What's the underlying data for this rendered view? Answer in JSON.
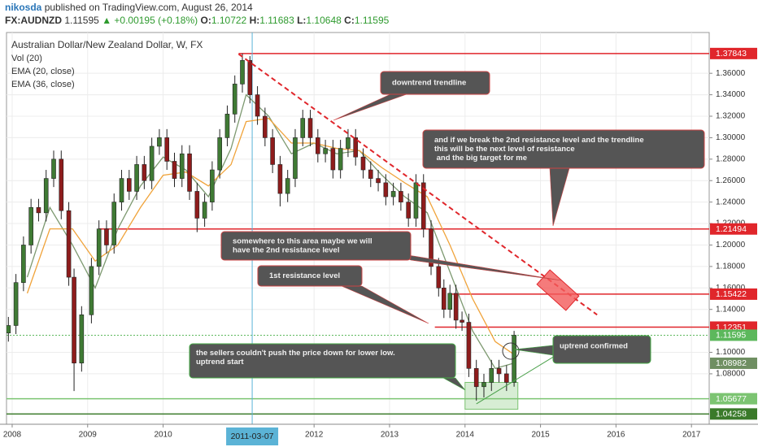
{
  "header": {
    "author": "nikosda",
    "published": "published on TradingView.com, August 26, 2014",
    "symbol": "FX:AUDNZD",
    "price": "1.11595",
    "change": "▲ +0.00195 (+0.18%)",
    "ohlc": [
      {
        "label": "O:",
        "value": "1.10722"
      },
      {
        "label": "H:",
        "value": "1.11683"
      },
      {
        "label": "L:",
        "value": "1.10648"
      },
      {
        "label": "C:",
        "value": "1.11595"
      }
    ]
  },
  "chart_data": {
    "type": "candlestick",
    "title": "Australian Dollar/New Zealand Dollar, W, FX",
    "indicators": [
      "Vol (20)"
    ],
    "up_color": "#3f7a34",
    "down_color": "#8e1c1c",
    "x": [
      2007.95,
      2008.05,
      2008.15,
      2008.25,
      2008.35,
      2008.45,
      2008.55,
      2008.65,
      2008.75,
      2008.82,
      2008.92,
      2009.05,
      2009.15,
      2009.25,
      2009.35,
      2009.45,
      2009.55,
      2009.65,
      2009.75,
      2009.85,
      2009.95,
      2010.05,
      2010.15,
      2010.25,
      2010.35,
      2010.45,
      2010.55,
      2010.65,
      2010.75,
      2010.85,
      2010.95,
      2011.05,
      2011.15,
      2011.25,
      2011.35,
      2011.45,
      2011.55,
      2011.65,
      2011.75,
      2011.85,
      2011.95,
      2012.05,
      2012.15,
      2012.25,
      2012.35,
      2012.45,
      2012.55,
      2012.65,
      2012.75,
      2012.85,
      2012.95,
      2013.05,
      2013.15,
      2013.25,
      2013.35,
      2013.45,
      2013.55,
      2013.65,
      2013.72,
      2013.8,
      2013.88,
      2013.96,
      2014.05,
      2014.15,
      2014.25,
      2014.35,
      2014.45,
      2014.55,
      2014.65
    ],
    "open": [
      1.118,
      1.125,
      1.165,
      1.2,
      1.235,
      1.23,
      1.262,
      1.28,
      1.232,
      1.17,
      1.09,
      1.135,
      1.18,
      1.215,
      1.2,
      1.24,
      1.262,
      1.25,
      1.275,
      1.26,
      1.292,
      1.3,
      1.278,
      1.262,
      1.285,
      1.25,
      1.225,
      1.24,
      1.27,
      1.3,
      1.322,
      1.35,
      1.372,
      1.34,
      1.32,
      1.3,
      1.275,
      1.248,
      1.262,
      1.3,
      1.318,
      1.3,
      1.285,
      1.29,
      1.27,
      1.29,
      1.3,
      1.282,
      1.27,
      1.262,
      1.258,
      1.245,
      1.25,
      1.24,
      1.225,
      1.258,
      1.215,
      1.18,
      1.16,
      1.14,
      1.155,
      1.13,
      1.128,
      1.085,
      1.068,
      1.072,
      1.085,
      1.08,
      1.072
    ],
    "high": [
      1.133,
      1.173,
      1.208,
      1.243,
      1.243,
      1.27,
      1.288,
      1.288,
      1.24,
      1.178,
      1.143,
      1.188,
      1.223,
      1.223,
      1.248,
      1.27,
      1.27,
      1.283,
      1.283,
      1.3,
      1.308,
      1.308,
      1.286,
      1.293,
      1.293,
      1.258,
      1.248,
      1.278,
      1.308,
      1.33,
      1.358,
      1.37843,
      1.376,
      1.348,
      1.328,
      1.308,
      1.283,
      1.27,
      1.308,
      1.326,
      1.326,
      1.308,
      1.298,
      1.298,
      1.298,
      1.308,
      1.308,
      1.29,
      1.278,
      1.27,
      1.266,
      1.258,
      1.258,
      1.248,
      1.266,
      1.266,
      1.223,
      1.188,
      1.168,
      1.163,
      1.163,
      1.138,
      1.136,
      1.093,
      1.08,
      1.093,
      1.093,
      1.088,
      1.12
    ],
    "low": [
      1.11,
      1.117,
      1.157,
      1.192,
      1.222,
      1.222,
      1.254,
      1.224,
      1.162,
      1.064,
      1.082,
      1.127,
      1.172,
      1.192,
      1.192,
      1.232,
      1.242,
      1.242,
      1.252,
      1.252,
      1.284,
      1.27,
      1.254,
      1.254,
      1.242,
      1.212,
      1.217,
      1.232,
      1.262,
      1.292,
      1.314,
      1.342,
      1.332,
      1.312,
      1.292,
      1.267,
      1.236,
      1.24,
      1.254,
      1.292,
      1.292,
      1.277,
      1.277,
      1.262,
      1.262,
      1.282,
      1.274,
      1.262,
      1.254,
      1.25,
      1.237,
      1.237,
      1.232,
      1.217,
      1.217,
      1.207,
      1.172,
      1.152,
      1.132,
      1.132,
      1.122,
      1.12,
      1.077,
      1.055,
      1.058,
      1.064,
      1.072,
      1.064,
      1.068
    ],
    "close": [
      1.125,
      1.165,
      1.2,
      1.235,
      1.23,
      1.262,
      1.28,
      1.232,
      1.17,
      1.09,
      1.135,
      1.18,
      1.215,
      1.2,
      1.24,
      1.262,
      1.25,
      1.275,
      1.26,
      1.292,
      1.3,
      1.278,
      1.262,
      1.285,
      1.25,
      1.225,
      1.24,
      1.27,
      1.3,
      1.322,
      1.35,
      1.372,
      1.34,
      1.32,
      1.3,
      1.275,
      1.248,
      1.262,
      1.3,
      1.318,
      1.3,
      1.285,
      1.29,
      1.27,
      1.29,
      1.3,
      1.282,
      1.27,
      1.262,
      1.258,
      1.245,
      1.25,
      1.24,
      1.225,
      1.258,
      1.215,
      1.18,
      1.16,
      1.14,
      1.155,
      1.13,
      1.128,
      1.085,
      1.068,
      1.072,
      1.085,
      1.08,
      1.072,
      1.11595
    ],
    "series": [
      {
        "name": "EMA (20, close)",
        "color": "#7d9970",
        "x": [
          2008.2,
          2008.5,
          2008.8,
          2009.1,
          2009.4,
          2009.7,
          2010.0,
          2010.3,
          2010.6,
          2010.9,
          2011.1,
          2011.4,
          2011.7,
          2012.0,
          2012.3,
          2012.6,
          2012.9,
          2013.2,
          2013.5,
          2013.8,
          2014.1,
          2014.4,
          2014.65
        ],
        "values": [
          1.17,
          1.235,
          1.2,
          1.16,
          1.215,
          1.255,
          1.282,
          1.27,
          1.245,
          1.29,
          1.34,
          1.32,
          1.285,
          1.295,
          1.285,
          1.288,
          1.265,
          1.245,
          1.23,
          1.175,
          1.12,
          1.085,
          1.09
        ]
      },
      {
        "name": "EMA (36, close)",
        "color": "#f0a33a",
        "x": [
          2008.2,
          2008.5,
          2008.8,
          2009.1,
          2009.4,
          2009.7,
          2010.0,
          2010.3,
          2010.6,
          2010.9,
          2011.1,
          2011.4,
          2011.7,
          2012.0,
          2012.3,
          2012.6,
          2012.9,
          2013.2,
          2013.5,
          2013.8,
          2014.1,
          2014.4,
          2014.65
        ],
        "values": [
          1.155,
          1.215,
          1.215,
          1.185,
          1.2,
          1.235,
          1.265,
          1.268,
          1.255,
          1.275,
          1.315,
          1.318,
          1.295,
          1.295,
          1.29,
          1.288,
          1.272,
          1.258,
          1.245,
          1.2,
          1.15,
          1.11,
          1.098
        ]
      }
    ],
    "xlim": [
      2007.925,
      2017.235
    ],
    "ylim": [
      1.033,
      1.398
    ],
    "xticks": [
      2008,
      2009,
      2010,
      2012,
      2013,
      2014,
      2015,
      2016,
      2017
    ],
    "yticks": [
      {
        "value": 1.36,
        "label": "1.36000"
      },
      {
        "value": 1.34,
        "label": "1.34000"
      },
      {
        "value": 1.32,
        "label": "1.32000"
      },
      {
        "value": 1.3,
        "label": "1.30000"
      },
      {
        "value": 1.28,
        "label": "1.28000"
      },
      {
        "value": 1.26,
        "label": "1.26000"
      },
      {
        "value": 1.24,
        "label": "1.24000"
      },
      {
        "value": 1.22,
        "label": "1.22000"
      },
      {
        "value": 1.2,
        "label": "1.20000"
      },
      {
        "value": 1.18,
        "label": "1.18000"
      },
      {
        "value": 1.16,
        "label": "1.16000"
      },
      {
        "value": 1.14,
        "label": "1.14000"
      },
      {
        "value": 1.1,
        "label": "1.10000"
      },
      {
        "value": 1.08,
        "label": "1.08000"
      }
    ],
    "grid": true,
    "crosshair": {
      "value": 2011.18,
      "label": "2011-03-07",
      "color": "#5bb3d6"
    },
    "levels": [
      {
        "value": 1.37843,
        "from": 2011.0,
        "color": "#e0262b"
      },
      {
        "value": 1.21494,
        "from": 2009.15,
        "color": "#e0262b"
      },
      {
        "value": 1.15422,
        "from": 2013.8,
        "color": "#e0262b"
      },
      {
        "value": 1.12351,
        "from": 2013.6,
        "color": "#e0262b"
      },
      {
        "value": 1.11595,
        "from": 2007.925,
        "color": "#5cb85c",
        "dotted": true
      },
      {
        "value": 1.08982,
        "from": 2017.235,
        "color": "#6f8f62"
      },
      {
        "value": 1.05677,
        "from": 2007.925,
        "color": "#7cc472"
      },
      {
        "value": 1.04258,
        "from": 2007.925,
        "color": "#3a7a2a"
      }
    ],
    "trendline": {
      "x": [
        2011.0,
        2015.75
      ],
      "values": [
        1.378,
        1.135
      ],
      "color": "#e0262b"
    },
    "zones": [
      {
        "x": [
          2014.0,
          2014.7
        ],
        "values": [
          1.047,
          1.072
        ],
        "color": "#7cc472"
      }
    ],
    "uptrend": {
      "x": [
        2014.15,
        2015.2
      ],
      "values": [
        1.052,
        1.097
      ],
      "color": "#4aa04a"
    },
    "annotations": [
      {
        "lines": [
          "downtrend trendline"
        ]
      },
      {
        "lines": [
          "and if we break the 2nd resistance level and the trendline",
          "this will be the next level of resistance",
          " and the big target for me"
        ]
      },
      {
        "lines": [
          "somewhere to this area maybe we will",
          "have the 2nd resistance level"
        ]
      },
      {
        "lines": [
          "1st resistance level"
        ]
      },
      {
        "lines": [
          "the sellers couldn't push the price down for lower low.",
          "uptrend start"
        ]
      },
      {
        "lines": [
          "uptrend confirmed"
        ]
      }
    ]
  }
}
